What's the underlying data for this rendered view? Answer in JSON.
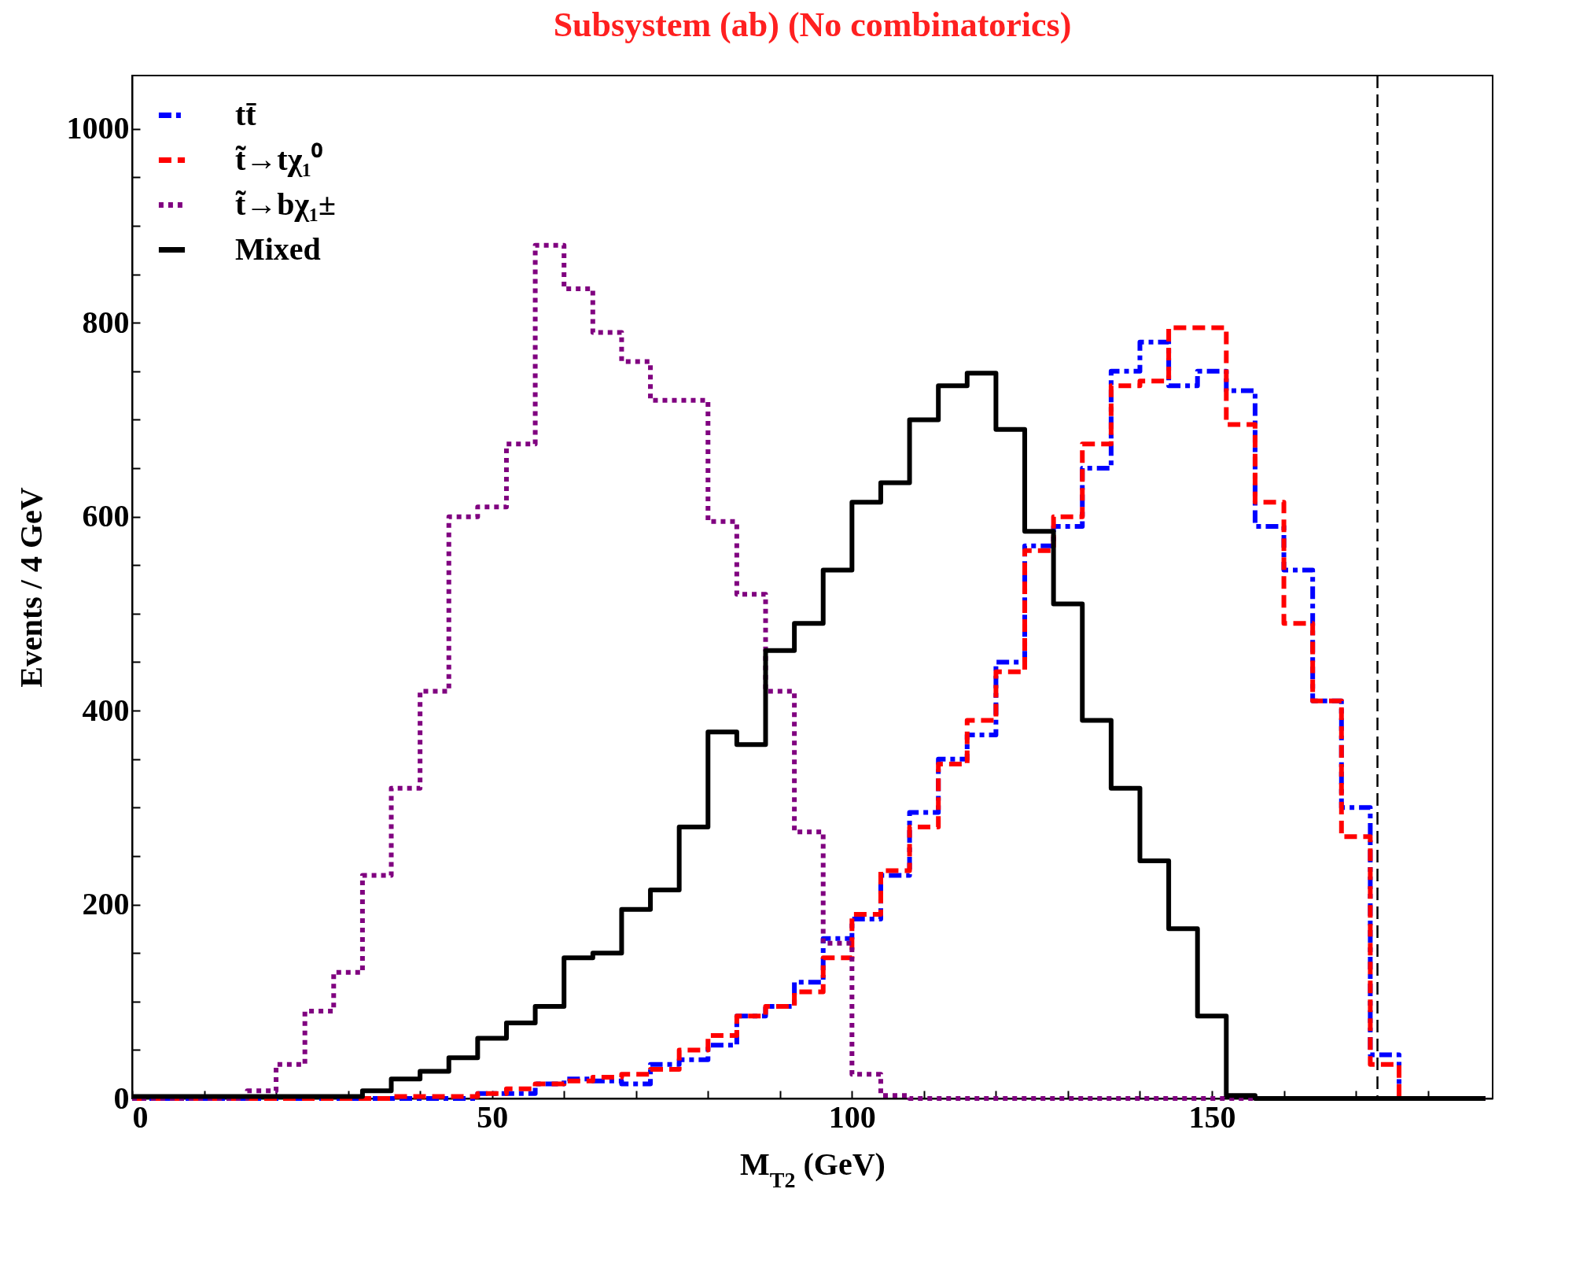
{
  "chart_data": {
    "type": "histogram",
    "title": "Subsystem (ab) (No combinatorics)",
    "xlabel": "M$_{T2}$ (GeV)",
    "ylabel": "Events / 4 GeV",
    "bins": [
      0,
      4,
      8,
      12,
      16,
      20,
      24,
      28,
      32,
      36,
      40,
      44,
      48,
      52,
      56,
      60,
      64,
      68,
      72,
      76,
      80,
      84,
      88,
      92,
      96,
      100,
      104,
      108,
      112,
      116,
      120,
      124,
      128,
      132,
      136,
      140,
      144,
      148,
      152,
      156,
      160,
      164,
      168,
      172,
      176,
      180,
      184,
      188
    ],
    "series": [
      {
        "name": "tt̄",
        "color": "#0000ff",
        "line_style": "dashdot",
        "values": [
          0,
          0,
          0,
          0,
          0,
          0,
          0,
          0,
          0,
          0,
          0,
          0,
          5,
          5,
          15,
          20,
          18,
          15,
          35,
          40,
          55,
          85,
          95,
          120,
          165,
          185,
          230,
          295,
          350,
          375,
          450,
          570,
          590,
          650,
          750,
          780,
          735,
          750,
          730,
          590,
          545,
          410,
          300,
          45,
          0,
          0,
          0
        ]
      },
      {
        "name": "t̃→tχ₁⁰",
        "color": "#ff0000",
        "line_style": "dashed",
        "values": [
          0,
          0,
          0,
          0,
          0,
          0,
          0,
          0,
          0,
          2,
          2,
          2,
          5,
          10,
          15,
          18,
          22,
          25,
          30,
          50,
          65,
          85,
          95,
          110,
          145,
          190,
          235,
          280,
          345,
          390,
          440,
          565,
          600,
          675,
          735,
          740,
          795,
          795,
          695,
          615,
          490,
          410,
          270,
          35,
          0,
          0,
          0
        ]
      },
      {
        "name": "t̃→bχ₁±",
        "color": "#800080",
        "line_style": "dotted",
        "values": [
          0,
          0,
          0,
          0,
          8,
          35,
          90,
          130,
          230,
          320,
          420,
          600,
          610,
          675,
          880,
          835,
          790,
          760,
          720,
          720,
          595,
          520,
          420,
          275,
          160,
          25,
          3,
          0,
          0,
          0,
          0,
          0,
          0,
          0,
          0,
          0,
          0,
          0,
          0,
          0,
          0,
          0,
          0,
          0,
          0,
          0,
          0
        ]
      },
      {
        "name": "Mixed",
        "color": "#000000",
        "line_style": "solid",
        "values": [
          2,
          2,
          2,
          2,
          2,
          2,
          2,
          2,
          8,
          20,
          28,
          42,
          62,
          78,
          95,
          145,
          150,
          195,
          215,
          280,
          378,
          365,
          462,
          490,
          545,
          615,
          635,
          700,
          735,
          748,
          690,
          585,
          510,
          390,
          320,
          245,
          175,
          85,
          3,
          0,
          0,
          0,
          0,
          0,
          0,
          0,
          0
        ]
      }
    ],
    "xlim": [
      0,
      189
    ],
    "xticks": [
      0,
      {
        "value": 10,
        "label": null
      },
      {
        "value": 20,
        "label": null
      },
      {
        "value": 30,
        "label": null
      },
      {
        "value": 40,
        "label": null
      },
      50,
      {
        "value": 60,
        "label": null
      },
      {
        "value": 70,
        "label": null
      },
      {
        "value": 80,
        "label": null
      },
      {
        "value": 90,
        "label": null
      },
      100,
      {
        "value": 110,
        "label": null
      },
      {
        "value": 120,
        "label": null
      },
      {
        "value": 130,
        "label": null
      },
      {
        "value": 140,
        "label": null
      },
      150,
      {
        "value": 160,
        "label": null
      },
      {
        "value": 170,
        "label": null
      },
      {
        "value": 180,
        "label": null
      }
    ],
    "ylim": [
      0,
      1055
    ],
    "yticks": [
      0,
      {
        "value": 50,
        "label": null
      },
      {
        "value": 100,
        "label": null
      },
      {
        "value": 150,
        "label": null
      },
      200,
      {
        "value": 250,
        "label": null
      },
      {
        "value": 300,
        "label": null
      },
      {
        "value": 350,
        "label": null
      },
      400,
      {
        "value": 450,
        "label": null
      },
      {
        "value": 500,
        "label": null
      },
      {
        "value": 550,
        "label": null
      },
      600,
      {
        "value": 650,
        "label": null
      },
      {
        "value": 700,
        "label": null
      },
      {
        "value": 750,
        "label": null
      },
      800,
      {
        "value": 850,
        "label": null
      },
      {
        "value": 900,
        "label": null
      },
      {
        "value": 950,
        "label": null
      },
      1000
    ],
    "ref_lines": [
      {
        "axis": "x",
        "value": 173,
        "label": null,
        "color": "#000000",
        "line_style": "dashed"
      }
    ],
    "legend": "top left"
  }
}
